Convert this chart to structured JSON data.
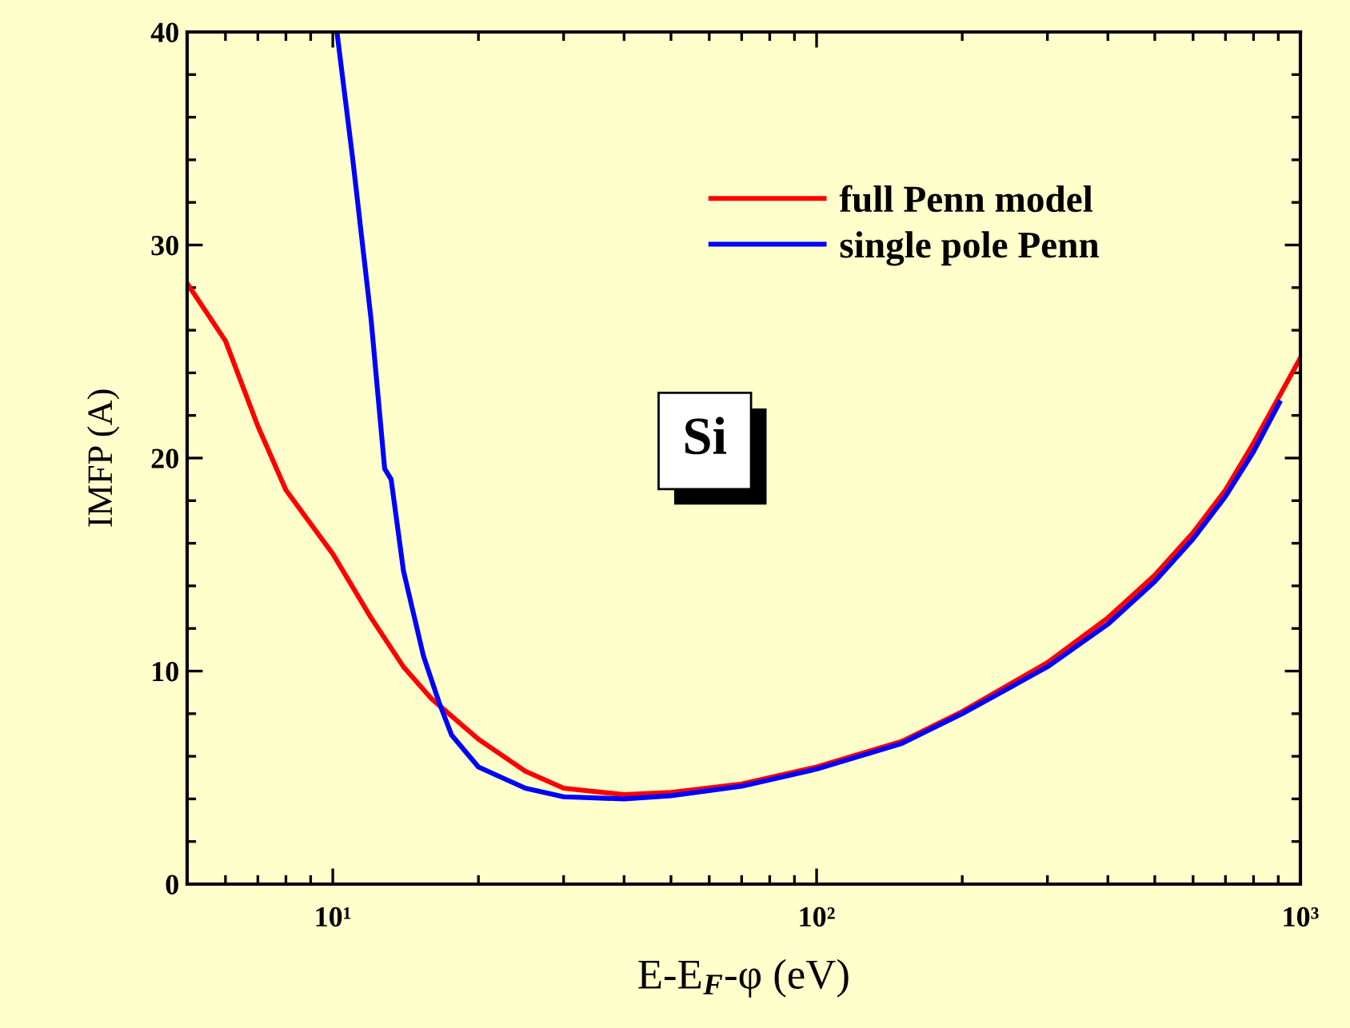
{
  "chart_data": {
    "type": "line",
    "xlabel": "E-E$_{F}$-φ (eV)",
    "ylabel": "IMFP (A)",
    "annotations": [
      "Si"
    ],
    "log": "x",
    "xlim": [
      5,
      1000
    ],
    "xticks": [
      {
        "value": 10,
        "label": "10¹"
      },
      {
        "value": 100,
        "label": "10²"
      },
      {
        "value": 1000,
        "label": "10³"
      }
    ],
    "ylim": [
      0,
      40
    ],
    "yticks": [
      0,
      10,
      20,
      30,
      40
    ],
    "grid": false,
    "legend": "top right",
    "marker": "none",
    "line_style": "solid",
    "series": [
      {
        "name": "full Penn model",
        "color": "#ff0000",
        "x": [
          5,
          6,
          7,
          8,
          10,
          12,
          14,
          16,
          20,
          25,
          30,
          40,
          50,
          70,
          100,
          150,
          200,
          300,
          400,
          500,
          600,
          700,
          800,
          1000
        ],
        "values": [
          28.2,
          25.5,
          21.5,
          18.5,
          15.5,
          12.5,
          10.2,
          8.7,
          6.8,
          5.3,
          4.5,
          4.2,
          4.3,
          4.7,
          5.5,
          6.7,
          8.1,
          10.4,
          12.5,
          14.5,
          16.5,
          18.5,
          20.7,
          24.7
        ]
      },
      {
        "name": "single pole Penn",
        "color": "#0000ff",
        "x": [
          10.2,
          11,
          12,
          12.8,
          13.2,
          14,
          15.4,
          16.6,
          17.6,
          20,
          25,
          30,
          40,
          50,
          70,
          100,
          150,
          200,
          300,
          400,
          500,
          600,
          700,
          800,
          905
        ],
        "values": [
          40,
          34,
          26.5,
          19.5,
          19,
          14.7,
          10.7,
          8.5,
          7.0,
          5.5,
          4.5,
          4.1,
          4.0,
          4.15,
          4.6,
          5.4,
          6.6,
          8.0,
          10.2,
          12.2,
          14.2,
          16.2,
          18.2,
          20.3,
          22.6
        ]
      }
    ]
  }
}
